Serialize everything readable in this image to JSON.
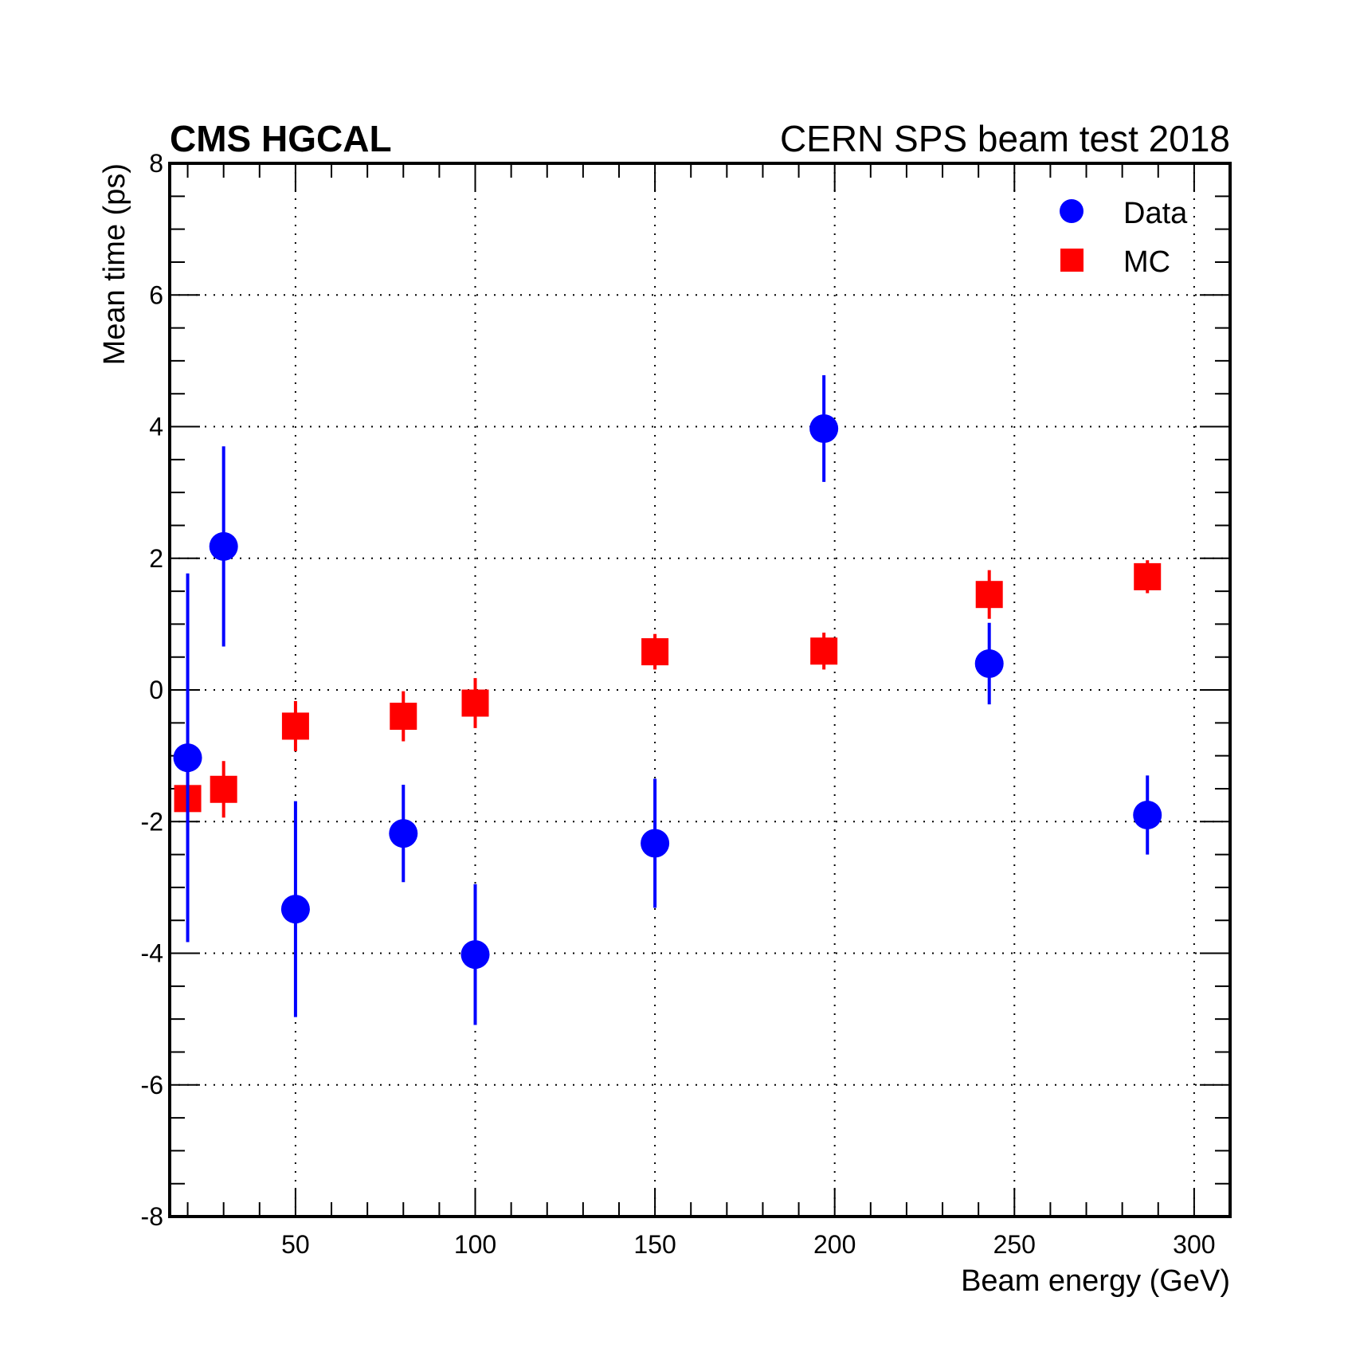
{
  "header": {
    "left_label": "CMS HGCAL",
    "right_label": "CERN SPS beam test 2018"
  },
  "colors": {
    "data": "#0000ff",
    "mc": "#ff0000",
    "axis": "#000000",
    "grid": "#000000"
  },
  "chart_data": {
    "type": "scatter",
    "title": "",
    "xlabel": "Beam energy (GeV)",
    "ylabel": "Mean time (ps)",
    "xlim": [
      15,
      310
    ],
    "ylim": [
      -8,
      8
    ],
    "x_ticks": [
      50,
      100,
      150,
      200,
      250,
      300
    ],
    "y_ticks": [
      -8,
      -6,
      -4,
      -2,
      0,
      2,
      4,
      6,
      8
    ],
    "grid": true,
    "legend_position": "top-right",
    "series": [
      {
        "name": "Data",
        "marker": "circle",
        "points": [
          {
            "x": 20,
            "y": -1.03,
            "err": 2.8
          },
          {
            "x": 30,
            "y": 2.18,
            "err": 1.52
          },
          {
            "x": 50,
            "y": -3.33,
            "err": 1.64
          },
          {
            "x": 80,
            "y": -2.18,
            "err": 0.74
          },
          {
            "x": 100,
            "y": -4.02,
            "err": 1.07
          },
          {
            "x": 150,
            "y": -2.33,
            "err": 0.98
          },
          {
            "x": 197,
            "y": 3.97,
            "err": 0.81
          },
          {
            "x": 243,
            "y": 0.4,
            "err": 0.62
          },
          {
            "x": 287,
            "y": -1.9,
            "err": 0.6
          }
        ]
      },
      {
        "name": "MC",
        "marker": "square",
        "points": [
          {
            "x": 20,
            "y": -1.65,
            "err": 0.48
          },
          {
            "x": 30,
            "y": -1.51,
            "err": 0.43
          },
          {
            "x": 50,
            "y": -0.55,
            "err": 0.38
          },
          {
            "x": 80,
            "y": -0.4,
            "err": 0.38
          },
          {
            "x": 100,
            "y": -0.2,
            "err": 0.38
          },
          {
            "x": 150,
            "y": 0.58,
            "err": 0.27
          },
          {
            "x": 197,
            "y": 0.59,
            "err": 0.28
          },
          {
            "x": 243,
            "y": 1.45,
            "err": 0.37
          },
          {
            "x": 287,
            "y": 1.72,
            "err": 0.25
          }
        ]
      }
    ]
  }
}
